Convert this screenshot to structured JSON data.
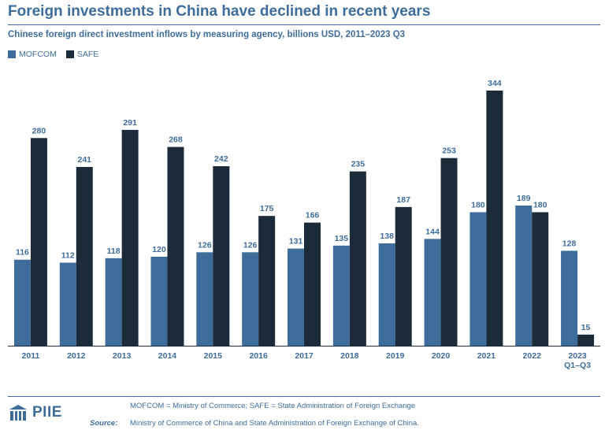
{
  "title": "Foreign investments in China have declined in recent years",
  "subtitle": "Chinese foreign direct investment inflows by measuring agency, billions USD, 2011–2023 Q3",
  "colors": {
    "mofcom": "#3e6d9c",
    "safe": "#1c2b3a",
    "accent": "#3e6d9c"
  },
  "chart_data": {
    "type": "bar",
    "title": "Foreign investments in China have declined in recent years",
    "subtitle": "Chinese foreign direct investment inflows by measuring agency, billions USD, 2011–2023 Q3",
    "categories": [
      "2011",
      "2012",
      "2013",
      "2014",
      "2015",
      "2016",
      "2017",
      "2018",
      "2019",
      "2020",
      "2021",
      "2022",
      "2023\nQ1–Q3"
    ],
    "series": [
      {
        "name": "MOFCOM",
        "values": [
          116,
          112,
          118,
          120,
          126,
          126,
          131,
          135,
          138,
          144,
          180,
          189,
          128
        ]
      },
      {
        "name": "SAFE",
        "values": [
          280,
          241,
          291,
          268,
          242,
          175,
          166,
          235,
          187,
          253,
          344,
          180,
          15
        ]
      }
    ],
    "ylim": [
      0,
      344
    ],
    "legend": "top-left",
    "grid": false
  },
  "legend": [
    {
      "label": "MOFCOM",
      "color": "#3e6d9c"
    },
    {
      "label": "SAFE",
      "color": "#1c2b3a"
    }
  ],
  "footer": {
    "logo": "PIIE",
    "note": "MOFCOM = Ministry of Commerce; SAFE = State Administration of Foreign Exchange",
    "source_label": "Source:",
    "source_text": "Ministry of Commerce of China and State Administration of Foreign Exchange of China."
  }
}
